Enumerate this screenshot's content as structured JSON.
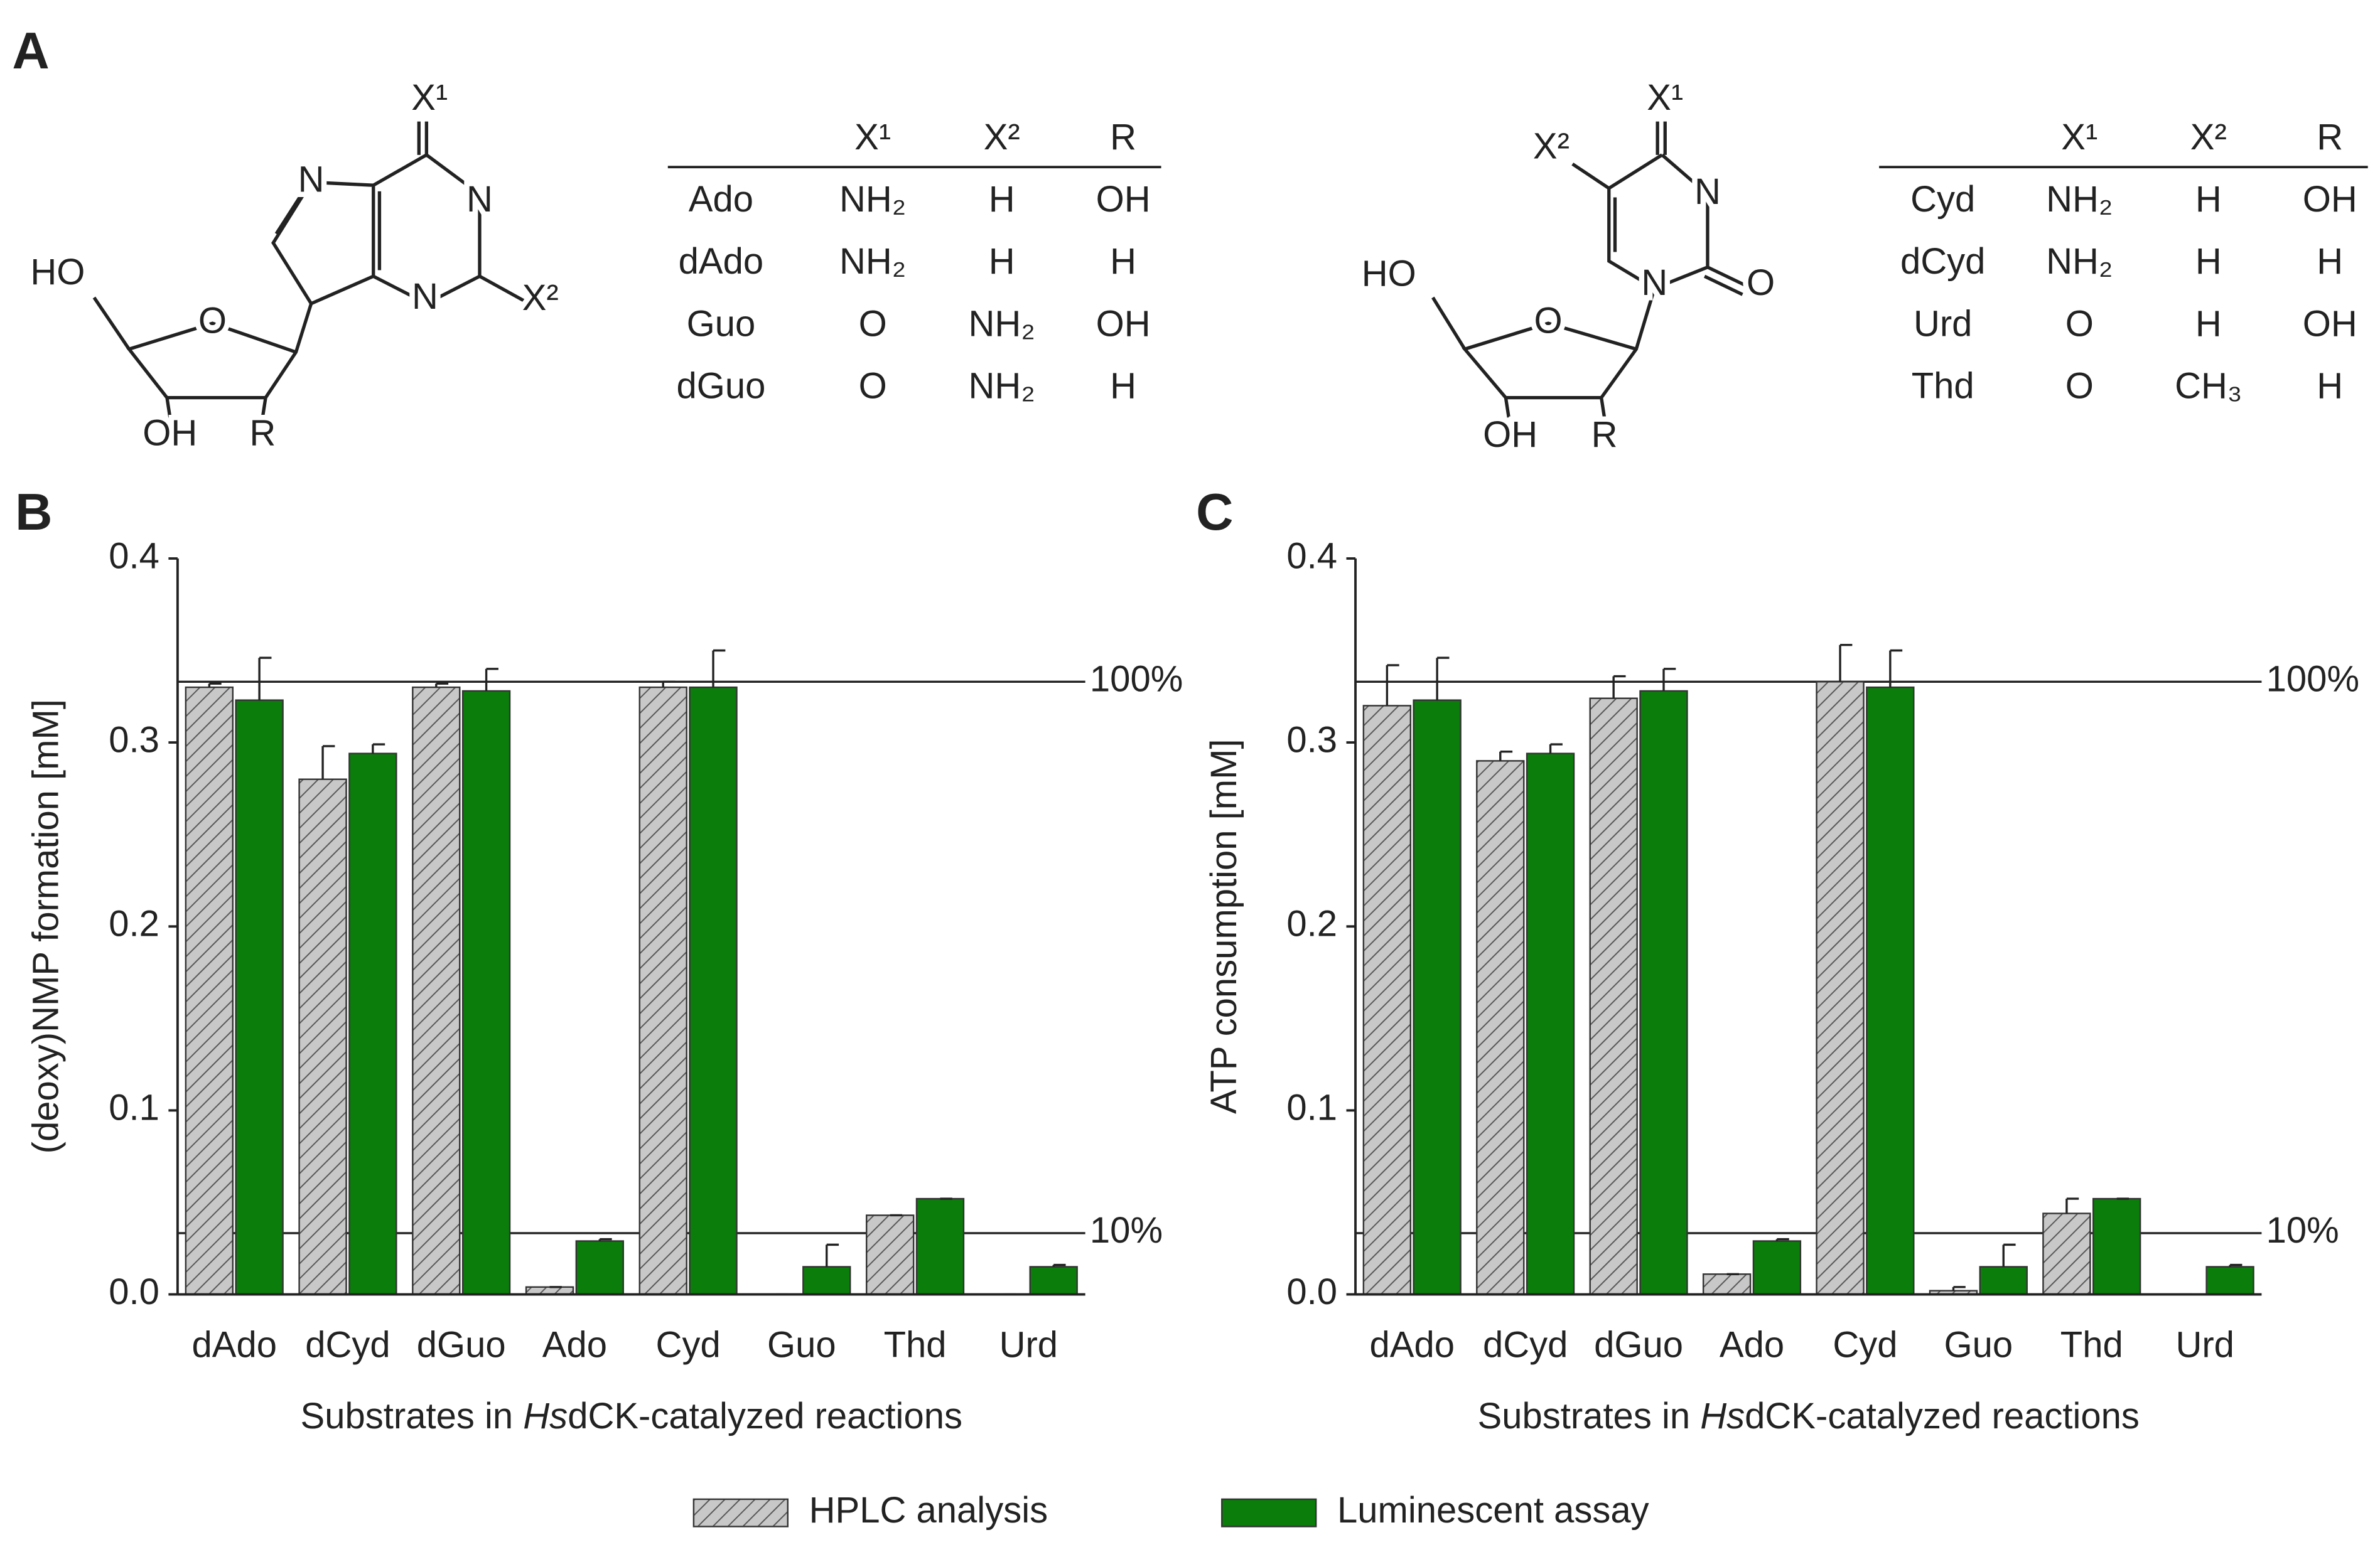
{
  "panel_a": {
    "label": "A",
    "structures": [
      {
        "labels": [
          "X¹",
          "N",
          "N",
          "X²",
          "N",
          "HO",
          "O",
          "OH",
          "R"
        ]
      },
      {
        "labels": [
          "X¹",
          "X²",
          "N",
          "N",
          "O",
          "HO",
          "O",
          "OH",
          "R"
        ]
      }
    ],
    "tables": [
      {
        "columns": [
          "X¹",
          "X²",
          "R"
        ],
        "rows": [
          [
            "Ado",
            "NH₂",
            "H",
            "OH"
          ],
          [
            "dAdo",
            "NH₂",
            "H",
            "H"
          ],
          [
            "Guo",
            "O",
            "NH₂",
            "OH"
          ],
          [
            "dGuo",
            "O",
            "NH₂",
            "H"
          ]
        ]
      },
      {
        "columns": [
          "X¹",
          "X²",
          "R"
        ],
        "rows": [
          [
            "Cyd",
            "NH₂",
            "H",
            "OH"
          ],
          [
            "dCyd",
            "NH₂",
            "H",
            "H"
          ],
          [
            "Urd",
            "O",
            "H",
            "OH"
          ],
          [
            "Thd",
            "O",
            "CH₃",
            "H"
          ]
        ]
      }
    ]
  },
  "series_styles": [
    {
      "name": "HPLC analysis",
      "color": "#c8c8c8",
      "hatch": true
    },
    {
      "name": "Luminescent assay",
      "color": "#0a7d0a",
      "hatch": false
    }
  ],
  "chart_data": [
    {
      "type": "bar",
      "label": "B",
      "ylabel": "(deoxy)NMP formation [mM]",
      "xlabel": [
        {
          "text": "Substrates in "
        },
        {
          "text": "Hs",
          "italic": true
        },
        {
          "text": "dCK-catalyzed reactions"
        }
      ],
      "categories": [
        "dAdo",
        "dCyd",
        "dGuo",
        "Ado",
        "Cyd",
        "Guo",
        "Thd",
        "Urd"
      ],
      "ylim": [
        0,
        0.4
      ],
      "yticks": [
        {
          "value": 0,
          "label": "0.0"
        },
        0.1,
        0.2,
        0.3,
        0.4
      ],
      "reference_lines": [
        {
          "value": 0.333,
          "label": "100%"
        },
        {
          "value": 0.0333,
          "label": "10%"
        }
      ],
      "series": [
        {
          "values": [
            0.33,
            0.28,
            0.33,
            0.004,
            0.33,
            0,
            0.043,
            0
          ],
          "errors": [
            0.002,
            0.018,
            0.002,
            0,
            0.003,
            0,
            0,
            0
          ]
        },
        {
          "values": [
            0.323,
            0.294,
            0.328,
            0.029,
            0.33,
            0.015,
            0.052,
            0.015
          ],
          "errors": [
            0.023,
            0.005,
            0.012,
            0.001,
            0.02,
            0.012,
            0,
            0.001
          ]
        }
      ]
    },
    {
      "type": "bar",
      "label": "C",
      "ylabel": "ATP consumption [mM]",
      "xlabel": [
        {
          "text": "Substrates in "
        },
        {
          "text": "Hs",
          "italic": true
        },
        {
          "text": "dCK-catalyzed reactions"
        }
      ],
      "categories": [
        "dAdo",
        "dCyd",
        "dGuo",
        "Ado",
        "Cyd",
        "Guo",
        "Thd",
        "Urd"
      ],
      "ylim": [
        0,
        0.4
      ],
      "yticks": [
        {
          "value": 0,
          "label": "0.0"
        },
        0.1,
        0.2,
        0.3,
        0.4
      ],
      "reference_lines": [
        {
          "value": 0.333,
          "label": "100%"
        },
        {
          "value": 0.0333,
          "label": "10%"
        }
      ],
      "series": [
        {
          "values": [
            0.32,
            0.29,
            0.324,
            0.011,
            0.333,
            0.002,
            0.044,
            0
          ],
          "errors": [
            0.022,
            0.005,
            0.012,
            0,
            0.02,
            0.002,
            0.008,
            0
          ]
        },
        {
          "values": [
            0.323,
            0.294,
            0.328,
            0.029,
            0.33,
            0.015,
            0.052,
            0.015
          ],
          "errors": [
            0.023,
            0.005,
            0.012,
            0.001,
            0.02,
            0.012,
            0,
            0.001
          ]
        }
      ]
    }
  ]
}
